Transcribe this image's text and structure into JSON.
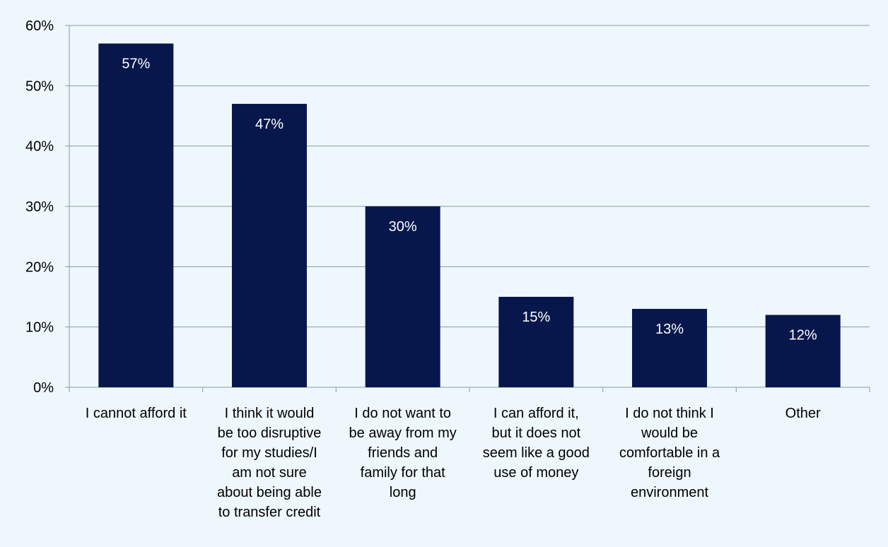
{
  "chart_data": {
    "type": "bar",
    "categories": [
      "I cannot afford it",
      "I think it would be too disruptive for my studies/I am not sure about being able to transfer credit",
      "I do not want to be away from my friends and family for that long",
      "I can afford it, but it does not seem like a good use of money",
      "I do not think I would be comfortable in a foreign environment",
      "Other"
    ],
    "category_label_lines": [
      [
        "I cannot afford it"
      ],
      [
        "I think it would",
        "be too disruptive",
        "for my studies/I",
        "am not sure",
        "about being able",
        "to transfer credit"
      ],
      [
        "I do not want to",
        "be away from my",
        "friends and",
        "family for that",
        "long"
      ],
      [
        "I can afford it,",
        "but it does not",
        "seem like a good",
        "use of money"
      ],
      [
        "I do not think I",
        "would be",
        "comfortable in a",
        "foreign",
        "environment"
      ],
      [
        "Other"
      ]
    ],
    "values": [
      57,
      47,
      30,
      15,
      13,
      12
    ],
    "data_labels": [
      "57%",
      "47%",
      "30%",
      "15%",
      "13%",
      "12%"
    ],
    "title": "",
    "xlabel": "",
    "ylabel": "",
    "ylim": [
      0,
      60
    ],
    "yticks": [
      0,
      10,
      20,
      30,
      40,
      50,
      60
    ],
    "ytick_labels": [
      "0%",
      "10%",
      "20%",
      "30%",
      "40%",
      "50%",
      "60%"
    ],
    "grid": true,
    "legend": "none",
    "colors": {
      "bar": "#07174b",
      "grid": "#8a9aa8",
      "axis": "#8a9aa8",
      "text": "#000000",
      "data_label": "#ffffff",
      "background": "#eef7fb"
    }
  }
}
